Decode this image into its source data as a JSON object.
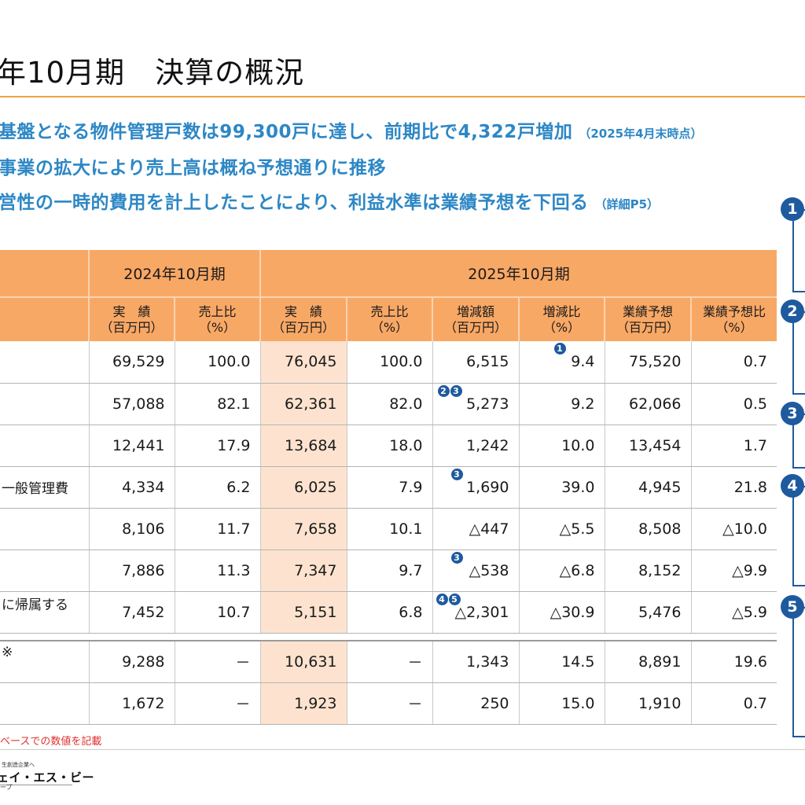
{
  "title": "年10月期　決算の概況",
  "bullets": [
    {
      "text": "基盤となる物件管理戸数は99,300戸に達し、前期比で4,322戸増加",
      "note": "（2025年4月末時点）"
    },
    {
      "text": "事業の拡大により売上高は概ね予想通りに推移",
      "note": ""
    },
    {
      "text": "営性の一時的費用を計上したことにより、利益水準は業績予想を下回る",
      "note": "（詳細P5）"
    }
  ],
  "table": {
    "period_prev": "2024年10月期",
    "period_curr": "2025年10月期",
    "columns": [
      {
        "l1": "実　績",
        "l2": "（百万円）"
      },
      {
        "l1": "売上比",
        "l2": "（%）"
      },
      {
        "l1": "実　績",
        "l2": "（百万円）"
      },
      {
        "l1": "売上比",
        "l2": "（%）"
      },
      {
        "l1": "増減額",
        "l2": "（百万円）"
      },
      {
        "l1": "増減比",
        "l2": "（%）"
      },
      {
        "l1": "業績予想",
        "l2": "（百万円）"
      },
      {
        "l1": "業績予想比",
        "l2": "（%）"
      }
    ],
    "rows": [
      {
        "label": "",
        "values": [
          "69,529",
          "100.0",
          "76,045",
          "100.0",
          "6,515",
          "9.4",
          "75,520",
          "0.7"
        ]
      },
      {
        "label": "",
        "values": [
          "57,088",
          "82.1",
          "62,361",
          "82.0",
          "5,273",
          "9.2",
          "62,066",
          "0.5"
        ]
      },
      {
        "label": "",
        "values": [
          "12,441",
          "17.9",
          "13,684",
          "18.0",
          "1,242",
          "10.0",
          "13,454",
          "1.7"
        ]
      },
      {
        "label": "一般管理費",
        "values": [
          "4,334",
          "6.2",
          "6,025",
          "7.9",
          "1,690",
          "39.0",
          "4,945",
          "21.8"
        ]
      },
      {
        "label": "",
        "values": [
          "8,106",
          "11.7",
          "7,658",
          "10.1",
          "△447",
          "△5.5",
          "8,508",
          "△10.0"
        ]
      },
      {
        "label": "",
        "values": [
          "7,886",
          "11.3",
          "7,347",
          "9.7",
          "△538",
          "△6.8",
          "8,152",
          "△9.9"
        ]
      },
      {
        "label": "に帰属する",
        "values": [
          "7,452",
          "10.7",
          "5,151",
          "6.8",
          "△2,301",
          "△30.9",
          "5,476",
          "△5.9"
        ]
      }
    ],
    "extra_rows": [
      {
        "label": "※",
        "values": [
          "9,288",
          "－",
          "10,631",
          "－",
          "1,343",
          "14.5",
          "8,891",
          "19.6"
        ]
      },
      {
        "label": "",
        "values": [
          "1,672",
          "－",
          "1,923",
          "－",
          "250",
          "15.0",
          "1,910",
          "0.7"
        ]
      }
    ],
    "markers": {
      "r0_c5": "1",
      "r1_c4a": "2",
      "r1_c4b": "3",
      "r3_c4": "3",
      "r5_c4": "3",
      "r6_c4a": "4",
      "r6_c4b": "5"
    }
  },
  "side_badges": [
    "1",
    "2",
    "3",
    "4",
    "5"
  ],
  "footnote": "ベースでの数値を記載",
  "logo": {
    "sub": "生創造企業へ",
    "main": "ェイ・エス・ビー",
    "tail": "ープ"
  }
}
